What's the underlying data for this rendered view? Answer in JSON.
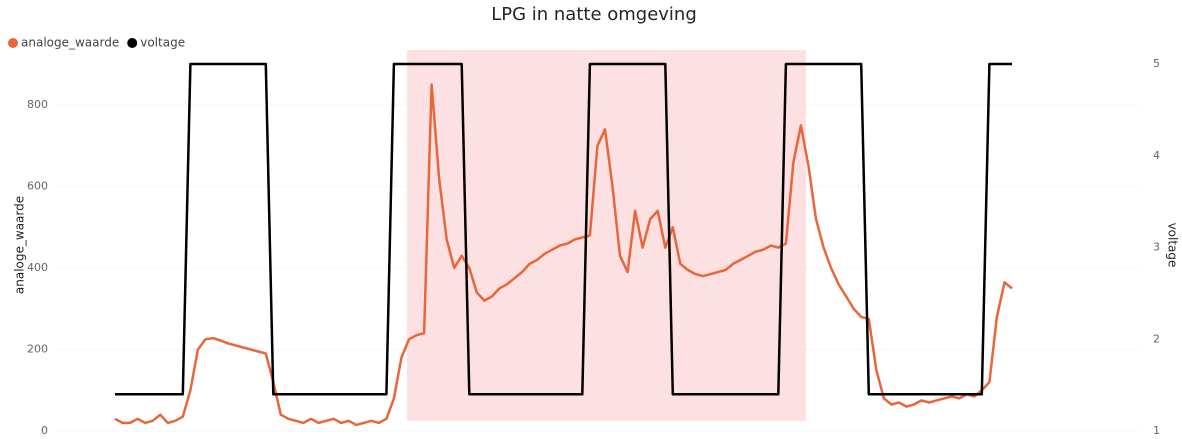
{
  "chart_data": {
    "type": "line",
    "title": "LPG in natte omgeving",
    "ylabel": "analoge_waarde",
    "y2label": "voltage",
    "ylim": [
      0,
      800
    ],
    "yticks": [
      0,
      200,
      400,
      600,
      800
    ],
    "y2lim": [
      1,
      5
    ],
    "y2ticks": [
      1,
      2,
      3,
      4,
      5
    ],
    "grid": true,
    "legend": "top-left",
    "series": [
      {
        "name": "analoge_waarde",
        "color": "#e8663a",
        "values": [
          30,
          20,
          20,
          30,
          20,
          25,
          40,
          20,
          25,
          35,
          100,
          200,
          225,
          228,
          222,
          215,
          210,
          205,
          200,
          195,
          190,
          120,
          40,
          30,
          25,
          20,
          30,
          20,
          25,
          30,
          20,
          25,
          15,
          20,
          25,
          20,
          30,
          80,
          180,
          225,
          235,
          240,
          850,
          620,
          470,
          400,
          430,
          400,
          340,
          320,
          330,
          350,
          360,
          375,
          390,
          410,
          420,
          435,
          445,
          455,
          460,
          470,
          475,
          480,
          700,
          740,
          600,
          430,
          390,
          540,
          450,
          520,
          540,
          450,
          500,
          410,
          395,
          385,
          380,
          385,
          390,
          395,
          410,
          420,
          430,
          440,
          445,
          455,
          450,
          460,
          660,
          750,
          650,
          520,
          450,
          400,
          360,
          330,
          300,
          280,
          275,
          150,
          80,
          65,
          70,
          60,
          65,
          75,
          70,
          75,
          80,
          85,
          80,
          90,
          85,
          100,
          120,
          280,
          365,
          350
        ]
      },
      {
        "name": "voltage",
        "color": "#000000",
        "axis": "y2",
        "values": [
          1.4,
          1.4,
          1.4,
          1.4,
          1.4,
          1.4,
          1.4,
          1.4,
          1.4,
          1.4,
          5,
          5,
          5,
          5,
          5,
          5,
          5,
          5,
          5,
          5,
          5,
          1.4,
          1.4,
          1.4,
          1.4,
          1.4,
          1.4,
          1.4,
          1.4,
          1.4,
          1.4,
          1.4,
          1.4,
          1.4,
          1.4,
          1.4,
          1.4,
          5,
          5,
          5,
          5,
          5,
          5,
          5,
          5,
          5,
          5,
          1.4,
          1.4,
          1.4,
          1.4,
          1.4,
          1.4,
          1.4,
          1.4,
          1.4,
          1.4,
          1.4,
          1.4,
          1.4,
          1.4,
          1.4,
          1.4,
          5,
          5,
          5,
          5,
          5,
          5,
          5,
          5,
          5,
          5,
          5,
          1.4,
          1.4,
          1.4,
          1.4,
          1.4,
          1.4,
          1.4,
          1.4,
          1.4,
          1.4,
          1.4,
          1.4,
          1.4,
          1.4,
          1.4,
          5,
          5,
          5,
          5,
          5,
          5,
          5,
          5,
          5,
          5,
          5,
          1.4,
          1.4,
          1.4,
          1.4,
          1.4,
          1.4,
          1.4,
          1.4,
          1.4,
          1.4,
          1.4,
          1.4,
          1.4,
          1.4,
          1.4,
          1.4,
          5,
          5,
          5,
          5
        ]
      }
    ]
  }
}
